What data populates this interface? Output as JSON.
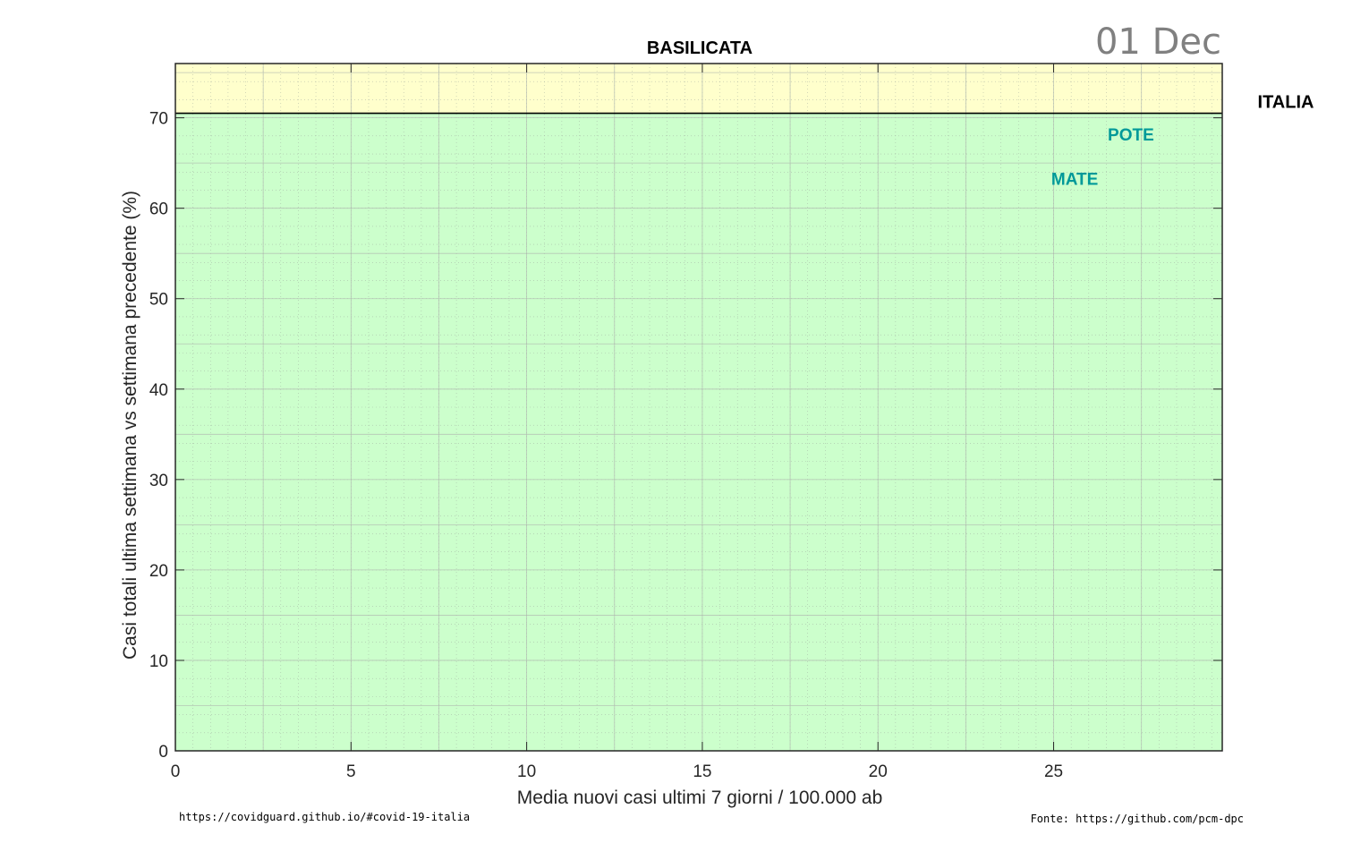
{
  "chart_data": {
    "type": "scatter",
    "title": "BASILICATA",
    "date_label": "01 Dec",
    "xlabel": "Media nuovi casi ultimi 7 giorni / 100.000 ab",
    "ylabel": "Casi totali ultima settimana vs settimana precedente (%)",
    "xlim": [
      0,
      29.8
    ],
    "ylim": [
      0,
      76
    ],
    "x_ticks": [
      "0",
      "5",
      "10",
      "15",
      "20",
      "25"
    ],
    "x_tick_values": [
      0,
      5,
      10,
      15,
      20,
      25
    ],
    "y_ticks": [
      "0",
      "10",
      "20",
      "30",
      "40",
      "50",
      "60",
      "70"
    ],
    "y_tick_values": [
      0,
      10,
      20,
      30,
      40,
      50,
      60,
      70
    ],
    "grid": true,
    "bands": [
      {
        "y_from": 0,
        "y_to": 70.5,
        "color": "#ccffcc"
      },
      {
        "y_from": 70.5,
        "y_to": 76,
        "color": "#ffffcc"
      }
    ],
    "reference_line": {
      "label": "ITALIA",
      "y": 70.5,
      "color": "#000000"
    },
    "points": [
      {
        "label": "POTE",
        "x": 27.2,
        "y": 68.2,
        "color": "#009999"
      },
      {
        "label": "MATE",
        "x": 25.6,
        "y": 63.3,
        "color": "#009999"
      }
    ]
  },
  "footer": {
    "left": "https://covidguard.github.io/#covid-19-italia",
    "right": "Fonte: https://github.com/pcm-dpc"
  }
}
